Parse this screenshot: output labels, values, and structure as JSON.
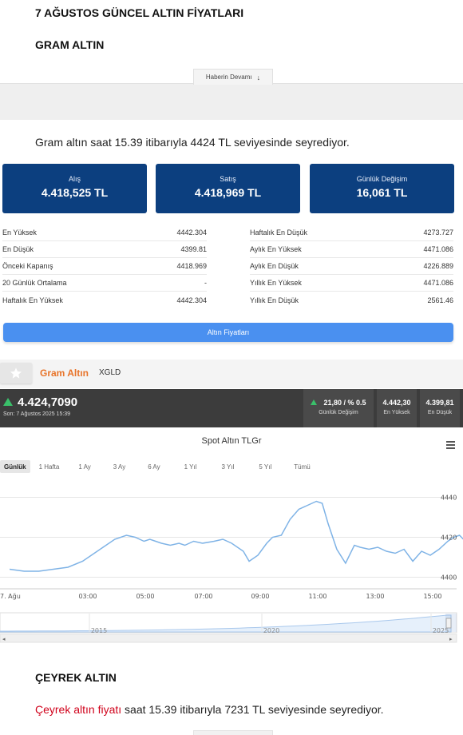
{
  "article": {
    "title": "7 AĞUSTOS GÜNCEL ALTIN FİYATLARI",
    "subtitle": "GRAM ALTIN",
    "read_more": "Haberin Devamı",
    "gram_text": "Gram altın saat 15.39 itibarıyla 4424 TL seviyesinde seyrediyor.",
    "ceyrek_heading": "ÇEYREK ALTIN",
    "ceyrek_link": "Çeyrek altın fiyatı",
    "ceyrek_text": " saat 15.39 itibarıyla 7231 TL seviyesinde seyrediyor."
  },
  "cards": [
    {
      "label": "Alış",
      "value": "4.418,525 TL"
    },
    {
      "label": "Satış",
      "value": "4.418,969 TL"
    },
    {
      "label": "Günlük Değişim",
      "value": "16,061 TL"
    }
  ],
  "table_left": [
    {
      "label": "En Yüksek",
      "value": "4442.304"
    },
    {
      "label": "En Düşük",
      "value": "4399.81"
    },
    {
      "label": "Önceki Kapanış",
      "value": "4418.969"
    },
    {
      "label": "20 Günlük Ortalama",
      "value": "-"
    },
    {
      "label": "Haftalık En Yüksek",
      "value": "4442.304"
    }
  ],
  "table_right": [
    {
      "label": "Haftalık En Düşük",
      "value": "4273.727"
    },
    {
      "label": "Aylık En Yüksek",
      "value": "4471.086"
    },
    {
      "label": "Aylık En Düşük",
      "value": "4226.889"
    },
    {
      "label": "Yıllık En Yüksek",
      "value": "4471.086"
    },
    {
      "label": "Yıllık En Düşük",
      "value": "2561.46"
    }
  ],
  "gold_prices_button": "Altın Fiyatları",
  "widget": {
    "name": "Gram Altın",
    "code": "XGLD",
    "price": "4.424,7090",
    "last_update": "Son: 7 Ağustos 2025 15:39",
    "stats": [
      {
        "value": "21,80 / % 0.5",
        "label": "Günlük Değişim"
      },
      {
        "value": "4.442,30",
        "label": "En Yüksek"
      },
      {
        "value": "4.399,81",
        "label": "En Düşük"
      }
    ],
    "accent": "#e8742a",
    "up_color": "#3ac06a",
    "dark_bg": "#3c3c3c",
    "card_color": "#0c3f7f",
    "button_color": "#4a90f0"
  },
  "chart_data": {
    "type": "line",
    "title": "Spot Altın TLGr",
    "ranges": [
      "Günlük",
      "1 Hafta",
      "1 Ay",
      "3 Ay",
      "6 Ay",
      "1 Yıl",
      "3 Yıl",
      "5 Yıl",
      "Tümü"
    ],
    "active_range": "Günlük",
    "x_ticks": [
      "7. Ağu",
      "03:00",
      "05:00",
      "07:00",
      "09:00",
      "11:00",
      "13:00",
      "15:00"
    ],
    "y_ticks": [
      4400,
      4420,
      4440
    ],
    "ylim": [
      4395,
      4445
    ],
    "x_hours": [
      0,
      0.5,
      1,
      1.5,
      2,
      2.5,
      3,
      3.3,
      3.6,
      4,
      4.3,
      4.6,
      4.8,
      5,
      5.2,
      5.5,
      5.8,
      6,
      6.3,
      6.6,
      7,
      7.3,
      7.6,
      8,
      8.2,
      8.5,
      8.8,
      9,
      9.3,
      9.6,
      9.9,
      10.2,
      10.5,
      10.7,
      10.9,
      11.2,
      11.5,
      11.8,
      12,
      12.3,
      12.6,
      12.9,
      13.2,
      13.5,
      13.8,
      14.1,
      14.4,
      14.7,
      15,
      15.2,
      15.4,
      15.6
    ],
    "y_values": [
      4404,
      4403,
      4403,
      4404,
      4405,
      4408,
      4413,
      4416,
      4419,
      4421,
      4420,
      4418,
      4419,
      4418,
      4417,
      4416,
      4417,
      4416,
      4418,
      4417,
      4418,
      4419,
      4417,
      4413,
      4408,
      4411,
      4417,
      4420,
      4421,
      4429,
      4434,
      4436,
      4438,
      4437,
      4427,
      4414,
      4407,
      4416,
      4415,
      4414,
      4415,
      4413,
      4412,
      4414,
      4408,
      4413,
      4411,
      4414,
      4418,
      4420,
      4421,
      4418
    ],
    "navigator_labels": [
      "2015",
      "2020",
      "2025"
    ],
    "line_color": "#7fb3e6"
  }
}
